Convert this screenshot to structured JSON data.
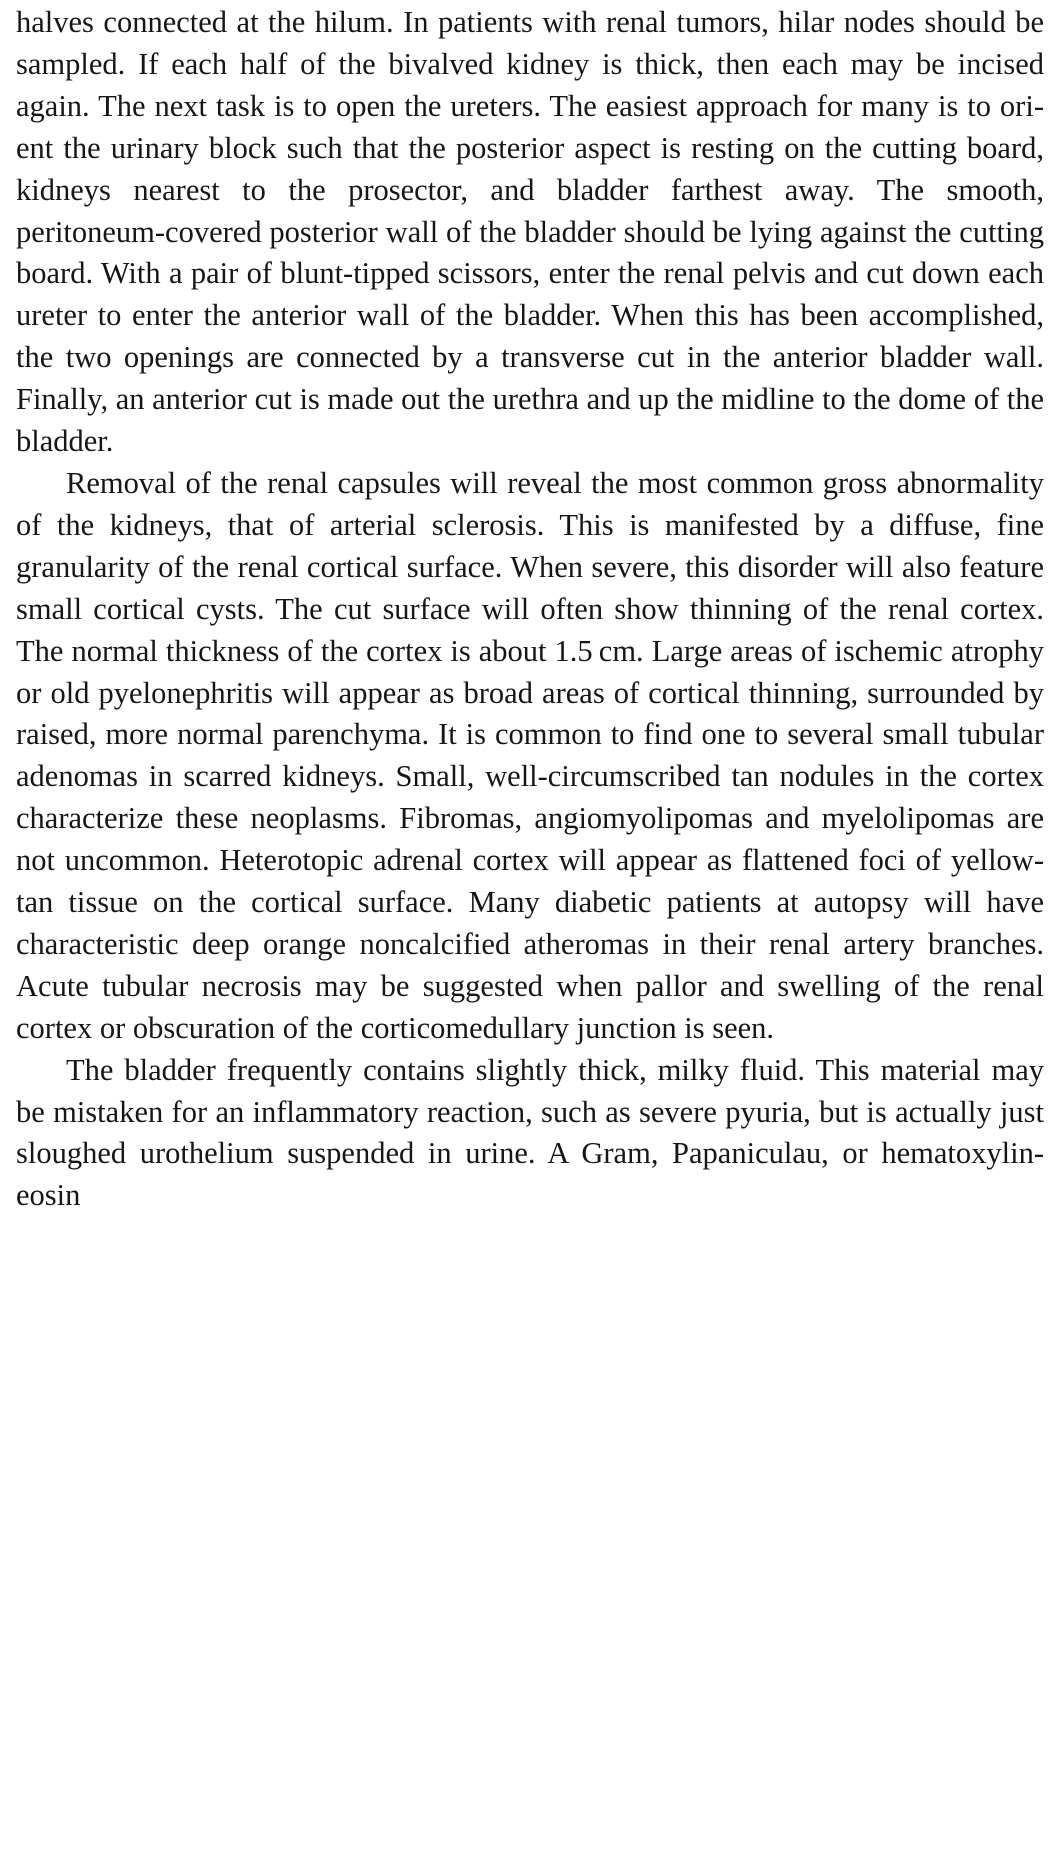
{
  "document": {
    "paragraphs": [
      {
        "indent": false,
        "text": "halves connected at the hilum. In patients with renal tumors, hilar nodes should be sampled. If each half of the bivalved kidney is thick, then each may be incised again. The next task is to open the ureters. The easiest approach for many is to ori­ent the urinary block such that the posterior aspect is resting on the cutting board, kidneys nearest to the prosector, and bladder farthest away. The smooth, peritoneum-covered posterior wall of the bladder should be lying against the cutting board. With a pair of blunt-tipped scissors, enter the renal pelvis and cut down each ureter to enter the anterior wall of the bladder. When this has been accomplished, the two openings are connected by a transverse cut in the anterior bladder wall. Finally, an anterior cut is made out the urethra and up the midline to the dome of the bladder."
      },
      {
        "indent": true,
        "text": "Removal of the renal capsules will reveal the most common gross abnormality of the kidneys, that of arterial sclerosis. This is manifested by a diffuse, fine granularity of the renal cortical surface. When severe, this disorder will also feature small cortical cysts. The cut surface will often show thinning of the renal cortex. The normal thickness of the cortex is about 1.5 cm. Large areas of ischemic atrophy or old pyelonephritis will appear as broad areas of cortical thinning, surrounded by raised, more normal parenchyma. It is common to find one to several small tubular adenomas in scarred kidneys. Small, well-circumscribed tan nodules in the cortex characterize these neoplasms. Fibromas, angiomyolipomas and myelolipomas are not uncommon. Heterotopic adrenal cortex will appear as flattened foci of yellow-tan tissue on the cortical surface. Many diabetic patients at autopsy will have characteristic deep orange noncalcified atheromas in their renal artery branches. Acute tubular necrosis may be suggested when pallor and swelling of the renal cortex or obscuration of the corticomedullary junction is seen."
      },
      {
        "indent": true,
        "text": "The bladder frequently contains slightly thick, milky fluid. This material may be mistaken for an inflammatory reaction, such as severe pyuria, but is actually just sloughed urothelium suspended in urine. A Gram, Papaniculau, or hematoxylin-eosin"
      }
    ]
  }
}
